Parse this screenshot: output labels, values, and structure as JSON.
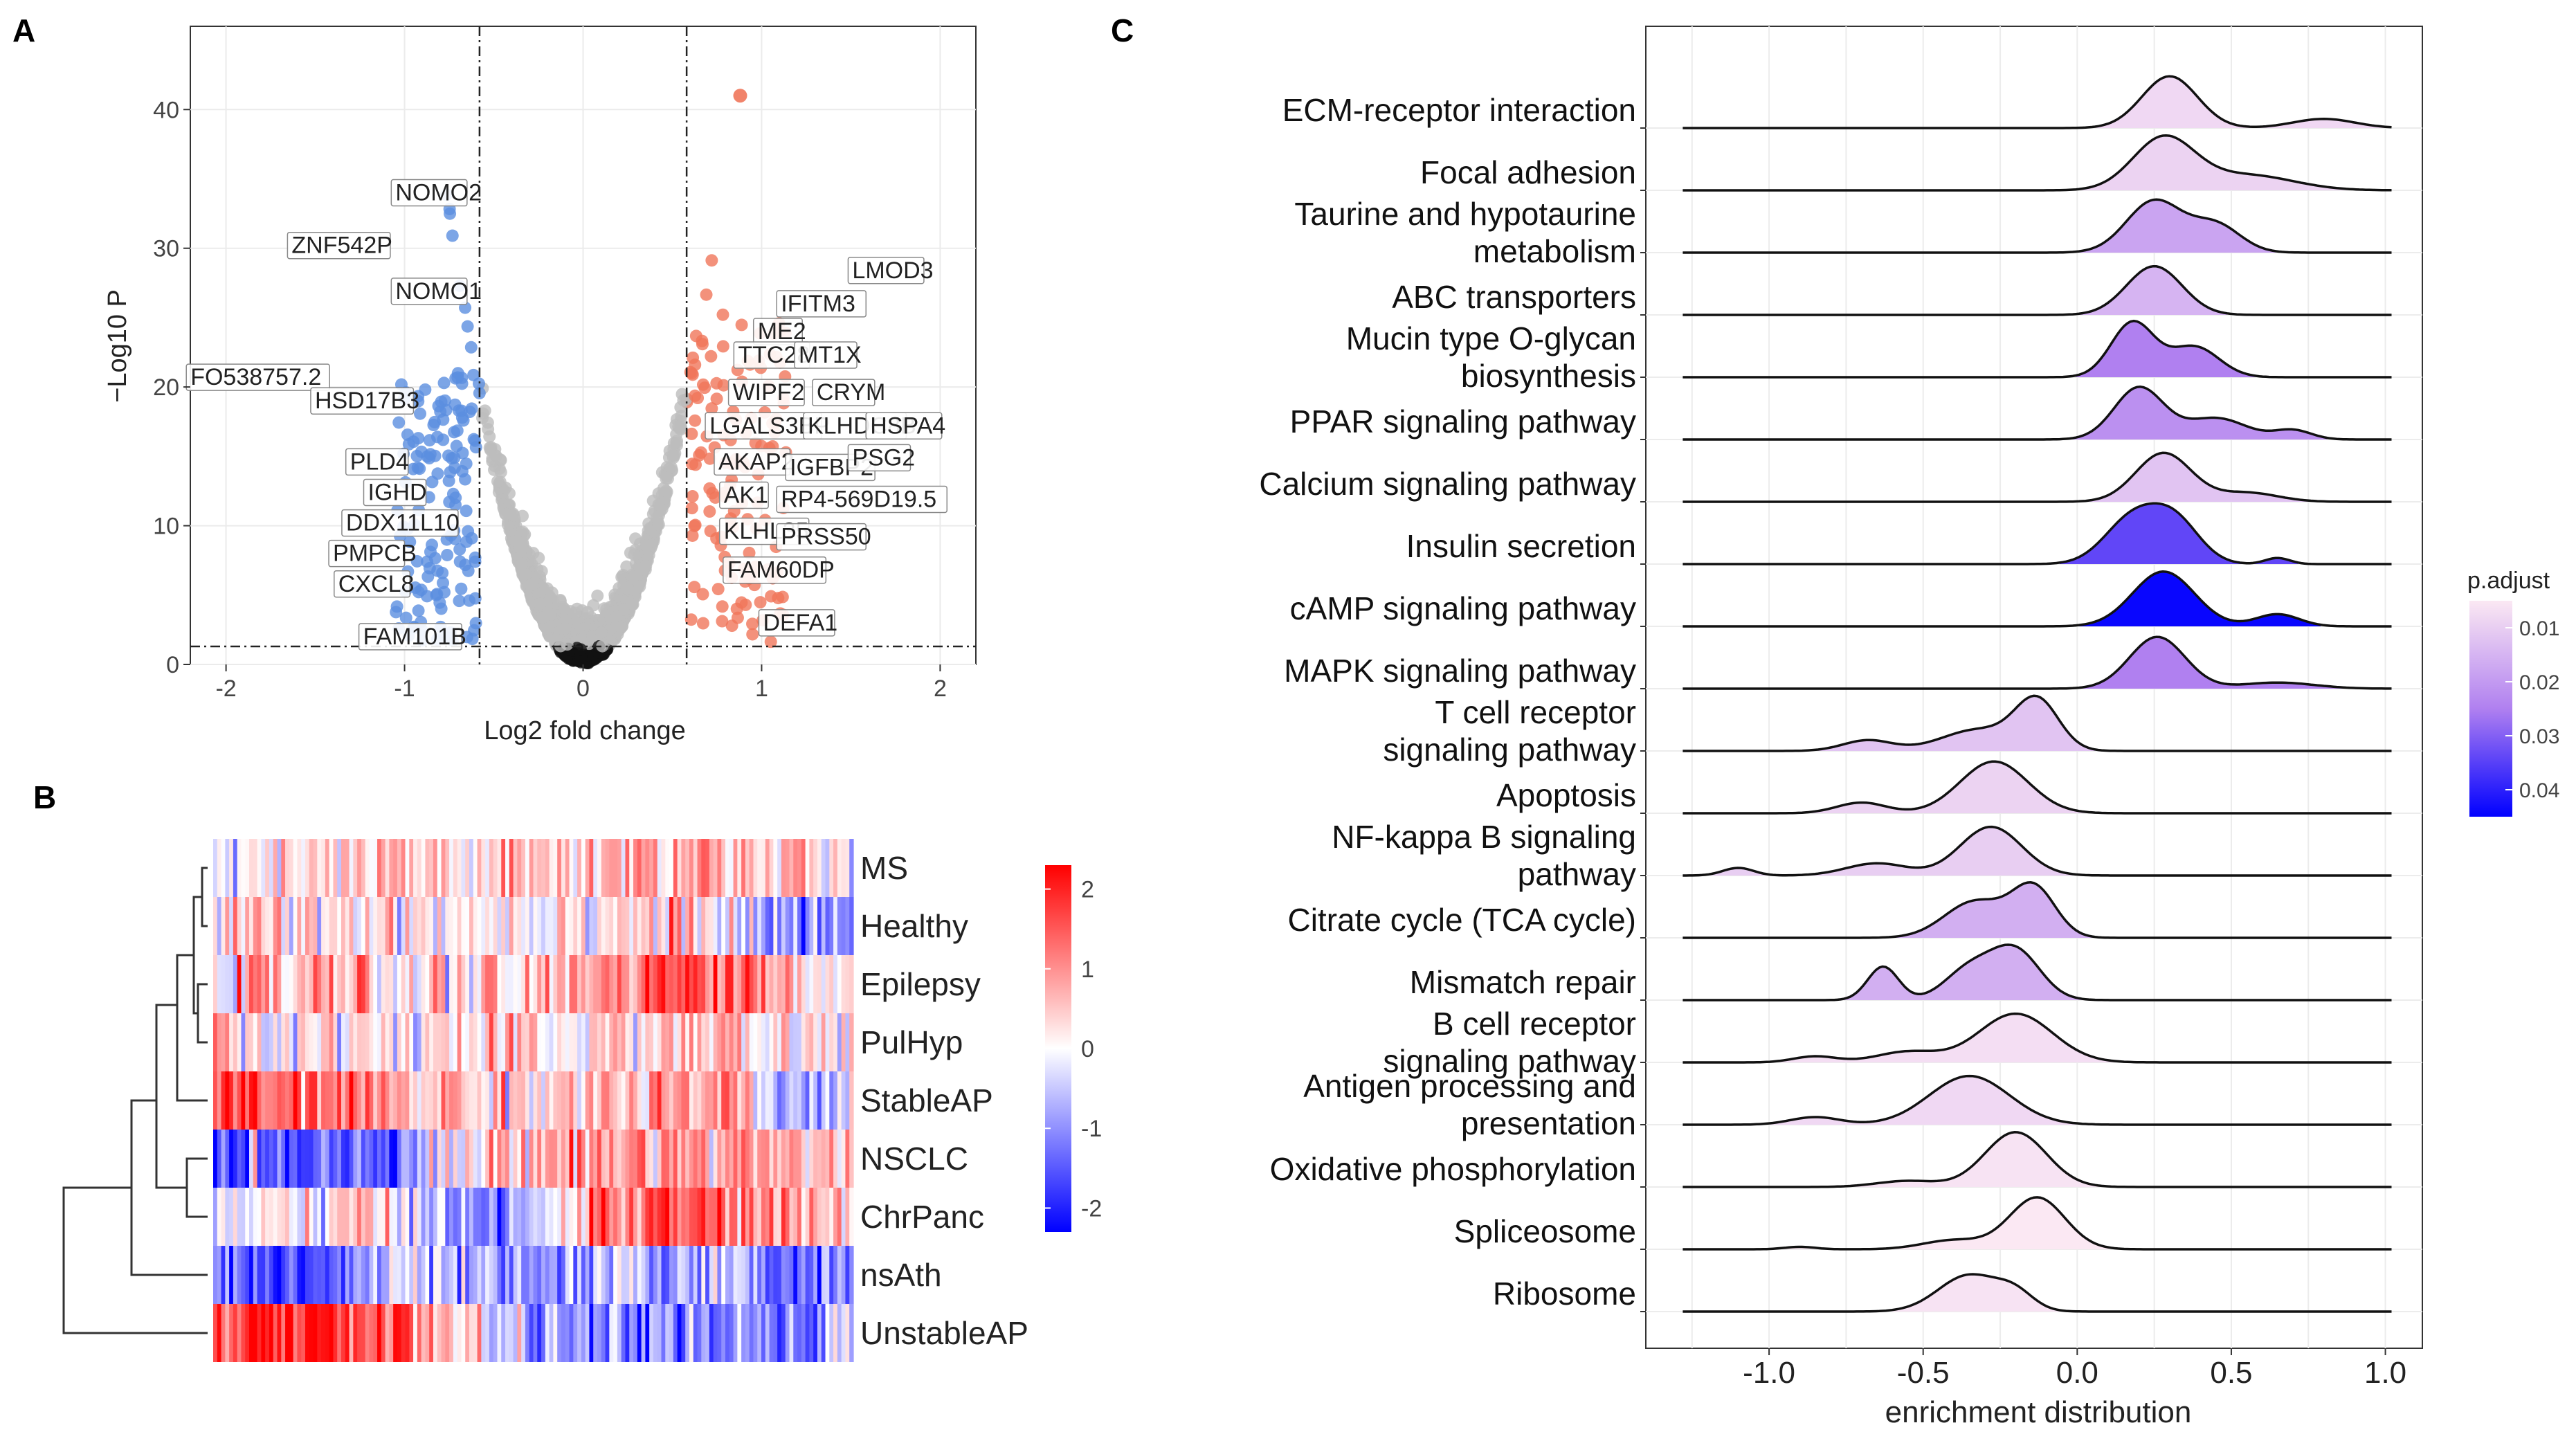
{
  "panel_labels": {
    "a": "A",
    "b": "B",
    "c": "C"
  },
  "colors": {
    "up": "#f0765a",
    "down": "#5b8ee0",
    "ns": "#bdbdbd",
    "low_p": "#0000ff",
    "high_p": "#fbe8f3"
  },
  "chart_data": [
    {
      "type": "scatter",
      "panel": "A",
      "title": "",
      "xlabel": "Log2 fold change",
      "ylabel": "−Log10 P",
      "xlim": [
        -2.2,
        2.2
      ],
      "ylim": [
        0,
        46
      ],
      "xticks": [
        -2,
        -1,
        0,
        1,
        2
      ],
      "yticks": [
        0,
        10,
        20,
        30,
        40
      ],
      "fc_cutoff": [
        -0.58,
        0.58
      ],
      "p_cutoff": 1.3,
      "grid": true,
      "labels_up": [
        {
          "gene": "LMOD3",
          "x": 1.5,
          "y": 28
        },
        {
          "gene": "IFITM3",
          "x": 1.1,
          "y": 25.6
        },
        {
          "gene": "ME2",
          "x": 0.97,
          "y": 23.6
        },
        {
          "gene": "TTC28",
          "x": 0.86,
          "y": 21.9
        },
        {
          "gene": "MT1X",
          "x": 1.2,
          "y": 21.9
        },
        {
          "gene": "WIPF2",
          "x": 0.83,
          "y": 19.2
        },
        {
          "gene": "CRYM",
          "x": 1.3,
          "y": 19.2
        },
        {
          "gene": "LGALS3BP",
          "x": 0.7,
          "y": 16.8
        },
        {
          "gene": "KLHDC8B",
          "x": 1.25,
          "y": 16.8
        },
        {
          "gene": "HSPA4",
          "x": 1.6,
          "y": 16.8
        },
        {
          "gene": "AKAP2",
          "x": 0.75,
          "y": 14.2
        },
        {
          "gene": "IGFBP2",
          "x": 1.15,
          "y": 13.8
        },
        {
          "gene": "PSG2",
          "x": 1.5,
          "y": 14.5
        },
        {
          "gene": "AK1",
          "x": 0.78,
          "y": 11.8
        },
        {
          "gene": "RP4-569D19.5",
          "x": 1.1,
          "y": 11.5
        },
        {
          "gene": "KLHL35",
          "x": 0.78,
          "y": 9.2
        },
        {
          "gene": "PRSS50",
          "x": 1.1,
          "y": 8.8
        },
        {
          "gene": "FAM60DP",
          "x": 0.8,
          "y": 6.4
        },
        {
          "gene": "DEFA1",
          "x": 1.0,
          "y": 2.6
        }
      ],
      "labels_down": [
        {
          "gene": "NOMO2",
          "x": -0.65,
          "y": 33.6
        },
        {
          "gene": "ZNF542P",
          "x": -1.08,
          "y": 29.8
        },
        {
          "gene": "NOMO1",
          "x": -0.65,
          "y": 26.5
        },
        {
          "gene": "FO538757.2",
          "x": -1.42,
          "y": 20.3
        },
        {
          "gene": "HSD17B3",
          "x": -0.95,
          "y": 18.6
        },
        {
          "gene": "PLD4",
          "x": -0.98,
          "y": 14.2
        },
        {
          "gene": "IGHD",
          "x": -0.88,
          "y": 12
        },
        {
          "gene": "DDX11L10",
          "x": -0.7,
          "y": 9.8
        },
        {
          "gene": "PMPCB",
          "x": -1.0,
          "y": 7.6
        },
        {
          "gene": "CXCL8",
          "x": -0.97,
          "y": 5.4
        },
        {
          "gene": "FAM101B",
          "x": -0.68,
          "y": 1.6
        }
      ]
    },
    {
      "type": "heatmap",
      "panel": "B",
      "rows": [
        "MS",
        "Healthy",
        "Epilepsy",
        "PulHyp",
        "StableAP",
        "NSCLC",
        "ChrPanc",
        "nsAth",
        "UnstableAP"
      ],
      "legend_ticks": [
        2,
        1,
        0,
        -1,
        -2
      ],
      "value_range": [
        -2.3,
        2.3
      ],
      "row_profiles": [
        [
          [
            0,
            -0.4
          ],
          [
            0.15,
            0.2
          ],
          [
            0.3,
            0.4
          ],
          [
            0.45,
            0.3
          ],
          [
            0.6,
            0.6
          ],
          [
            0.75,
            0.9
          ],
          [
            0.88,
            0.5
          ],
          [
            1,
            -0.2
          ]
        ],
        [
          [
            0,
            0.2
          ],
          [
            0.2,
            0.4
          ],
          [
            0.4,
            0.2
          ],
          [
            0.6,
            0.3
          ],
          [
            0.75,
            0.5
          ],
          [
            0.85,
            -0.9
          ],
          [
            1,
            -1.3
          ]
        ],
        [
          [
            0,
            0.4
          ],
          [
            0.2,
            0.7
          ],
          [
            0.35,
            0.2
          ],
          [
            0.5,
            0.3
          ],
          [
            0.65,
            1.5
          ],
          [
            0.8,
            1.6
          ],
          [
            0.9,
            0.6
          ],
          [
            1,
            0.2
          ]
        ],
        [
          [
            0,
            0.2
          ],
          [
            0.2,
            0.1
          ],
          [
            0.35,
            0.3
          ],
          [
            0.5,
            0.1
          ],
          [
            0.65,
            0.4
          ],
          [
            0.8,
            0.5
          ],
          [
            0.9,
            0.0
          ],
          [
            1,
            0.3
          ]
        ],
        [
          [
            0,
            1.5
          ],
          [
            0.2,
            1.2
          ],
          [
            0.35,
            0.6
          ],
          [
            0.5,
            0.4
          ],
          [
            0.65,
            0.6
          ],
          [
            0.8,
            0.8
          ],
          [
            0.9,
            -1.0
          ],
          [
            1,
            -0.4
          ]
        ],
        [
          [
            0,
            -1.4
          ],
          [
            0.25,
            -1.3
          ],
          [
            0.4,
            0.2
          ],
          [
            0.55,
            0.9
          ],
          [
            0.7,
            1.0
          ],
          [
            0.85,
            0.8
          ],
          [
            1,
            0.6
          ]
        ],
        [
          [
            0,
            -0.5
          ],
          [
            0.2,
            0.3
          ],
          [
            0.35,
            -0.3
          ],
          [
            0.45,
            -1.6
          ],
          [
            0.6,
            1.3
          ],
          [
            0.75,
            1.5
          ],
          [
            0.9,
            0.8
          ],
          [
            1,
            0.5
          ]
        ],
        [
          [
            0,
            -1.3
          ],
          [
            0.15,
            -1.8
          ],
          [
            0.3,
            -0.4
          ],
          [
            0.45,
            -1.2
          ],
          [
            0.6,
            -0.9
          ],
          [
            0.75,
            -0.5
          ],
          [
            0.9,
            -1.3
          ],
          [
            1,
            -0.8
          ]
        ],
        [
          [
            0,
            1.7
          ],
          [
            0.2,
            2.0
          ],
          [
            0.3,
            1.4
          ],
          [
            0.45,
            -0.4
          ],
          [
            0.6,
            -1.3
          ],
          [
            0.75,
            -1.1
          ],
          [
            0.9,
            -1.4
          ],
          [
            1,
            -0.6
          ]
        ]
      ]
    },
    {
      "type": "area",
      "subtype": "ridgeline",
      "panel": "C",
      "xlabel": "enrichment distribution",
      "xlim": [
        -1.4,
        1.12
      ],
      "xticks": [
        -1.0,
        -0.5,
        0.0,
        0.5,
        1.0
      ],
      "xtick_labels": [
        "-1.0",
        "-0.5",
        "0.0",
        "0.5",
        "1.0"
      ],
      "legend_title": "p.adjust",
      "legend_ticks": [
        0.01,
        0.02,
        0.03,
        0.04
      ],
      "legend_tick_labels": [
        "0.01",
        "0.02",
        "0.03",
        "0.04"
      ],
      "padj_range": [
        0.005,
        0.045
      ],
      "grid": true,
      "pathways": [
        {
          "name": "ECM-receptor interaction",
          "padj": 0.008,
          "peaks": [
            [
              0.3,
              0.09,
              1.7
            ],
            [
              0.8,
              0.1,
              0.3
            ]
          ]
        },
        {
          "name": "Focal adhesion",
          "padj": 0.009,
          "peaks": [
            [
              0.28,
              0.1,
              1.7
            ],
            [
              0.55,
              0.15,
              0.5
            ]
          ]
        },
        {
          "name": "Taurine and hypotaurine metabolism",
          "padj": 0.018,
          "peaks": [
            [
              0.25,
              0.09,
              1.7
            ],
            [
              0.45,
              0.08,
              0.9
            ]
          ]
        },
        {
          "name": "ABC transporters",
          "padj": 0.015,
          "peaks": [
            [
              0.25,
              0.09,
              1.6
            ]
          ]
        },
        {
          "name": "Mucin type O-glycan biosynthesis",
          "padj": 0.025,
          "peaks": [
            [
              0.18,
              0.07,
              1.8
            ],
            [
              0.38,
              0.08,
              1.0
            ]
          ]
        },
        {
          "name": "PPAR signaling pathway",
          "padj": 0.022,
          "peaks": [
            [
              0.2,
              0.08,
              1.7
            ],
            [
              0.45,
              0.1,
              0.7
            ],
            [
              0.7,
              0.06,
              0.3
            ]
          ]
        },
        {
          "name": "Calcium signaling pathway",
          "padj": 0.012,
          "peaks": [
            [
              0.28,
              0.09,
              1.6
            ],
            [
              0.55,
              0.1,
              0.3
            ]
          ]
        },
        {
          "name": "Insulin secretion",
          "padj": 0.034,
          "peaks": [
            [
              0.18,
              0.09,
              1.5
            ],
            [
              0.32,
              0.08,
              1.3
            ],
            [
              0.65,
              0.04,
              0.2
            ]
          ]
        },
        {
          "name": "cAMP signaling pathway",
          "padj": 0.044,
          "peaks": [
            [
              0.28,
              0.1,
              1.8
            ],
            [
              0.65,
              0.07,
              0.4
            ]
          ]
        },
        {
          "name": "MAPK signaling pathway",
          "padj": 0.025,
          "peaks": [
            [
              0.26,
              0.09,
              1.7
            ],
            [
              0.65,
              0.12,
              0.2
            ]
          ]
        },
        {
          "name": "T cell receptor signaling pathway",
          "padj": 0.012,
          "peaks": [
            [
              -0.13,
              0.07,
              1.6
            ],
            [
              -0.32,
              0.12,
              0.7
            ],
            [
              -0.68,
              0.08,
              0.35
            ]
          ]
        },
        {
          "name": "Apoptosis",
          "padj": 0.009,
          "peaks": [
            [
              -0.27,
              0.11,
              1.7
            ],
            [
              -0.7,
              0.08,
              0.35
            ]
          ]
        },
        {
          "name": "NF-kappa B signaling pathway",
          "padj": 0.01,
          "peaks": [
            [
              -0.28,
              0.1,
              1.6
            ],
            [
              -0.65,
              0.1,
              0.4
            ],
            [
              -1.1,
              0.05,
              0.25
            ]
          ]
        },
        {
          "name": "Citrate cycle (TCA cycle)",
          "padj": 0.016,
          "peaks": [
            [
              -0.14,
              0.07,
              1.6
            ],
            [
              -0.33,
              0.1,
              1.2
            ]
          ]
        },
        {
          "name": "Mismatch repair",
          "padj": 0.016,
          "peaks": [
            [
              -0.2,
              0.08,
              1.6
            ],
            [
              -0.35,
              0.08,
              1.0
            ],
            [
              -0.63,
              0.05,
              1.1
            ]
          ]
        },
        {
          "name": "B cell receptor signaling pathway",
          "padj": 0.007,
          "peaks": [
            [
              -0.2,
              0.12,
              1.6
            ],
            [
              -0.55,
              0.1,
              0.35
            ],
            [
              -0.85,
              0.07,
              0.2
            ]
          ]
        },
        {
          "name": "Antigen processing and presentation",
          "padj": 0.008,
          "peaks": [
            [
              -0.35,
              0.13,
              1.6
            ],
            [
              -0.85,
              0.08,
              0.25
            ]
          ]
        },
        {
          "name": "Oxidative phosphorylation",
          "padj": 0.006,
          "peaks": [
            [
              -0.2,
              0.1,
              1.8
            ],
            [
              -0.55,
              0.1,
              0.2
            ]
          ]
        },
        {
          "name": "Spliceosome",
          "padj": 0.005,
          "peaks": [
            [
              -0.13,
              0.09,
              1.7
            ],
            [
              -0.4,
              0.1,
              0.3
            ],
            [
              -0.9,
              0.05,
              0.08
            ]
          ]
        },
        {
          "name": "Ribosome",
          "padj": 0.006,
          "peaks": [
            [
              -0.35,
              0.1,
              1.2
            ],
            [
              -0.2,
              0.06,
              0.5
            ]
          ]
        }
      ]
    }
  ]
}
